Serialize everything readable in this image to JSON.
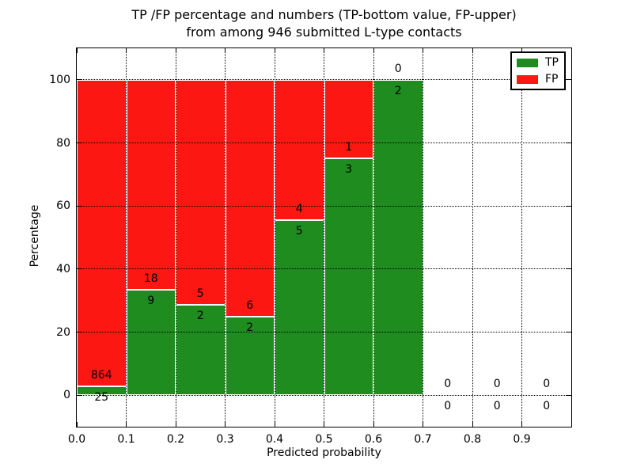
{
  "chart_data": {
    "type": "bar",
    "stacked": true,
    "percentage_normalized": true,
    "title_line1": "TP /FP percentage and numbers (TP-bottom value, FP-upper)",
    "title_line2": "from among 946 submitted L-type contacts",
    "title": "TP /FP percentage and numbers (TP-bottom value, FP-upper) from among 946 submitted L-type contacts",
    "xlabel": "Predicted probability",
    "ylabel": "Percentage",
    "total_contacts": 946,
    "bins": [
      0.0,
      0.1,
      0.2,
      0.3,
      0.4,
      0.5,
      0.6,
      0.7,
      0.8,
      0.9
    ],
    "bin_width": 0.1,
    "series": [
      {
        "name": "TP",
        "color": "#1e8c1e",
        "counts": [
          25,
          9,
          2,
          2,
          5,
          3,
          2,
          0,
          0,
          0
        ]
      },
      {
        "name": "FP",
        "color": "#fc1712",
        "counts": [
          864,
          18,
          5,
          6,
          4,
          1,
          0,
          0,
          0,
          0
        ]
      }
    ],
    "tp_percentages": [
      2.8,
      33.3,
      28.6,
      25.0,
      55.6,
      75.0,
      100.0,
      null,
      null,
      null
    ],
    "xticks": [
      "0.0",
      "0.1",
      "0.2",
      "0.3",
      "0.4",
      "0.5",
      "0.6",
      "0.7",
      "0.8",
      "0.9"
    ],
    "yticks": [
      0,
      20,
      40,
      60,
      80,
      100
    ],
    "xlim": [
      0.0,
      1.0
    ],
    "ylim": [
      -10,
      110
    ],
    "grid": "dotted",
    "legend": {
      "position": "upper right",
      "entries": [
        "TP",
        "FP"
      ]
    }
  }
}
